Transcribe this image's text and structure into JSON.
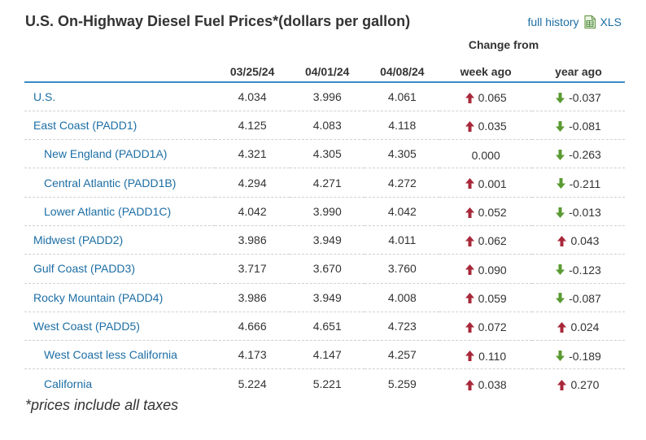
{
  "title": "U.S. On-Highway Diesel Fuel Prices*(dollars per gallon)",
  "links": {
    "full_history": "full history",
    "xls": "XLS"
  },
  "change_from_label": "Change from",
  "columns": [
    "",
    "03/25/24",
    "04/01/24",
    "04/08/24",
    "week ago",
    "year ago"
  ],
  "rows": [
    {
      "name": "U.S.",
      "sub": false,
      "v1": "4.034",
      "v2": "3.996",
      "v3": "4.061",
      "week": "0.065",
      "week_dir": "up",
      "year": "-0.037",
      "year_dir": "down"
    },
    {
      "name": "East Coast (PADD1)",
      "sub": false,
      "v1": "4.125",
      "v2": "4.083",
      "v3": "4.118",
      "week": "0.035",
      "week_dir": "up",
      "year": "-0.081",
      "year_dir": "down"
    },
    {
      "name": "New England (PADD1A)",
      "sub": true,
      "v1": "4.321",
      "v2": "4.305",
      "v3": "4.305",
      "week": "0.000",
      "week_dir": "none",
      "year": "-0.263",
      "year_dir": "down"
    },
    {
      "name": "Central Atlantic (PADD1B)",
      "sub": true,
      "v1": "4.294",
      "v2": "4.271",
      "v3": "4.272",
      "week": "0.001",
      "week_dir": "up",
      "year": "-0.211",
      "year_dir": "down"
    },
    {
      "name": "Lower Atlantic (PADD1C)",
      "sub": true,
      "v1": "4.042",
      "v2": "3.990",
      "v3": "4.042",
      "week": "0.052",
      "week_dir": "up",
      "year": "-0.013",
      "year_dir": "down"
    },
    {
      "name": "Midwest (PADD2)",
      "sub": false,
      "v1": "3.986",
      "v2": "3.949",
      "v3": "4.011",
      "week": "0.062",
      "week_dir": "up",
      "year": "0.043",
      "year_dir": "up"
    },
    {
      "name": "Gulf Coast (PADD3)",
      "sub": false,
      "v1": "3.717",
      "v2": "3.670",
      "v3": "3.760",
      "week": "0.090",
      "week_dir": "up",
      "year": "-0.123",
      "year_dir": "down"
    },
    {
      "name": "Rocky Mountain (PADD4)",
      "sub": false,
      "v1": "3.986",
      "v2": "3.949",
      "v3": "4.008",
      "week": "0.059",
      "week_dir": "up",
      "year": "-0.087",
      "year_dir": "down"
    },
    {
      "name": "West Coast (PADD5)",
      "sub": false,
      "v1": "4.666",
      "v2": "4.651",
      "v3": "4.723",
      "week": "0.072",
      "week_dir": "up",
      "year": "0.024",
      "year_dir": "up"
    },
    {
      "name": "West Coast less California",
      "sub": true,
      "v1": "4.173",
      "v2": "4.147",
      "v3": "4.257",
      "week": "0.110",
      "week_dir": "up",
      "year": "-0.189",
      "year_dir": "down"
    },
    {
      "name": "California",
      "sub": true,
      "v1": "5.224",
      "v2": "5.221",
      "v3": "5.259",
      "week": "0.038",
      "week_dir": "up",
      "year": "0.270",
      "year_dir": "up"
    }
  ],
  "footnote": "*prices include all taxes",
  "colors": {
    "link": "#1c6ea4",
    "up_arrow": "#a8283a",
    "down_arrow": "#5a9a32",
    "header_rule": "#3a8cc4"
  }
}
